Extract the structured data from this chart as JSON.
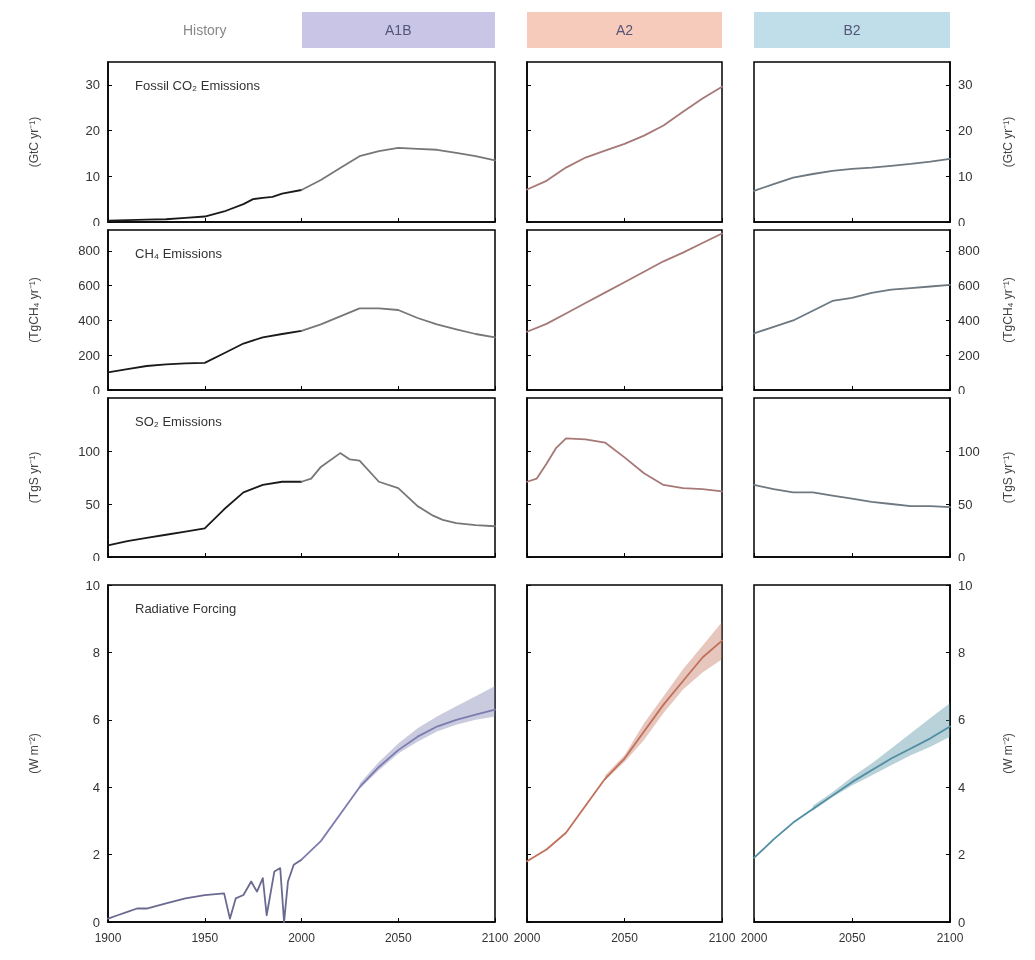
{
  "chart_data": [
    {
      "type": "line",
      "title": "Fossil CO₂ Emissions",
      "ylabel": "(GtC yr⁻¹)",
      "annotations": [
        "History",
        "A1B"
      ],
      "xlim": [
        1900,
        2100
      ],
      "xticks": [
        1900,
        1950,
        2000,
        2050,
        2100
      ],
      "ylim": [
        0,
        35
      ],
      "yticks": [
        0,
        10,
        20,
        30
      ],
      "tick_labels": "y",
      "series": [
        {
          "color": "#1a1a1a",
          "x": [
            1900,
            1910,
            1920,
            1930,
            1940,
            1950,
            1960,
            1970,
            1975,
            1980,
            1985,
            1990,
            2000
          ],
          "values": [
            0.3,
            0.4,
            0.5,
            0.6,
            0.9,
            1.2,
            2.3,
            3.9,
            5.0,
            5.3,
            5.5,
            6.2,
            7.0
          ]
        },
        {
          "color": "#777777",
          "x": [
            2000,
            2010,
            2020,
            2030,
            2040,
            2050,
            2060,
            2070,
            2080,
            2090,
            2100
          ],
          "values": [
            7.0,
            9.2,
            11.8,
            14.4,
            15.5,
            16.2,
            16.0,
            15.8,
            15.1,
            14.4,
            13.5
          ]
        }
      ]
    },
    {
      "type": "line",
      "annotations": [
        "A2"
      ],
      "xlim": [
        2000,
        2100
      ],
      "xticks": [
        2000,
        2050,
        2100
      ],
      "ylim": [
        0,
        35
      ],
      "yticks": [
        0,
        10,
        20,
        30
      ],
      "tick_labels": false,
      "series": [
        {
          "color": "#a77878",
          "x": [
            2000,
            2010,
            2020,
            2030,
            2040,
            2050,
            2060,
            2070,
            2080,
            2090,
            2100
          ],
          "values": [
            7.1,
            9.0,
            11.9,
            14.1,
            15.6,
            17.1,
            18.9,
            21.1,
            24.1,
            27.0,
            29.6
          ]
        }
      ]
    },
    {
      "type": "line",
      "ylabel": "(GtC yr⁻¹)",
      "annotations": [
        "B2"
      ],
      "xlim": [
        2000,
        2100
      ],
      "xticks": [
        2000,
        2050,
        2100
      ],
      "ylim": [
        0,
        35
      ],
      "yticks": [
        0,
        10,
        20,
        30
      ],
      "tick_labels": "y",
      "series": [
        {
          "color": "#6d7880",
          "x": [
            2000,
            2010,
            2020,
            2030,
            2040,
            2050,
            2060,
            2070,
            2080,
            2090,
            2100
          ],
          "values": [
            6.8,
            8.3,
            9.7,
            10.5,
            11.2,
            11.6,
            11.9,
            12.3,
            12.7,
            13.2,
            13.8
          ]
        }
      ]
    },
    {
      "type": "line",
      "title": "CH₄ Emissions",
      "ylabel": "(TgCH₄ yr⁻¹)",
      "xlim": [
        1900,
        2100
      ],
      "xticks": [
        1900,
        1950,
        2000,
        2050,
        2100
      ],
      "ylim": [
        0,
        920
      ],
      "yticks": [
        0,
        200,
        400,
        600,
        800
      ],
      "tick_labels": "y",
      "series": [
        {
          "color": "#1a1a1a",
          "x": [
            1900,
            1910,
            1920,
            1930,
            1940,
            1950,
            1960,
            1970,
            1980,
            1990,
            2000
          ],
          "values": [
            101,
            120,
            138,
            147,
            153,
            156,
            211,
            267,
            303,
            322,
            340
          ]
        },
        {
          "color": "#777777",
          "x": [
            2000,
            2010,
            2020,
            2030,
            2040,
            2050,
            2060,
            2070,
            2080,
            2090,
            2100
          ],
          "values": [
            340,
            377,
            423,
            469,
            469,
            460,
            414,
            377,
            349,
            322,
            303
          ]
        }
      ]
    },
    {
      "type": "line",
      "xlim": [
        2000,
        2100
      ],
      "xticks": [
        2000,
        2050,
        2100
      ],
      "ylim": [
        0,
        920
      ],
      "yticks": [
        0,
        200,
        400,
        600,
        800
      ],
      "tick_labels": false,
      "series": [
        {
          "color": "#a77878",
          "x": [
            2000,
            2010,
            2020,
            2030,
            2040,
            2050,
            2060,
            2070,
            2080,
            2090,
            2100
          ],
          "values": [
            335,
            380,
            440,
            500,
            560,
            620,
            680,
            740,
            790,
            845,
            900
          ]
        }
      ]
    },
    {
      "type": "line",
      "ylabel": "(TgCH₄ yr⁻¹)",
      "xlim": [
        2000,
        2100
      ],
      "xticks": [
        2000,
        2050,
        2100
      ],
      "ylim": [
        0,
        920
      ],
      "yticks": [
        0,
        200,
        400,
        600,
        800
      ],
      "tick_labels": "y",
      "series": [
        {
          "color": "#6d7880",
          "x": [
            2000,
            2010,
            2020,
            2030,
            2040,
            2050,
            2060,
            2070,
            2080,
            2090,
            2100
          ],
          "values": [
            326,
            363,
            400,
            456,
            512,
            530,
            558,
            577,
            586,
            595,
            605
          ]
        }
      ]
    },
    {
      "type": "line",
      "title": "SO₂ Emissions",
      "ylabel": "(TgS yr⁻¹)",
      "xlim": [
        1900,
        2100
      ],
      "xticks": [
        1900,
        1950,
        2000,
        2050,
        2100
      ],
      "ylim": [
        0,
        150
      ],
      "yticks": [
        0,
        50,
        100
      ],
      "tick_labels": "y",
      "series": [
        {
          "color": "#1a1a1a",
          "x": [
            1900,
            1910,
            1920,
            1930,
            1940,
            1950,
            1960,
            1970,
            1980,
            1990,
            2000
          ],
          "values": [
            11,
            15,
            18,
            21,
            24,
            27,
            45,
            61,
            68,
            71,
            71
          ]
        },
        {
          "color": "#777777",
          "x": [
            2000,
            2005,
            2010,
            2020,
            2025,
            2030,
            2040,
            2050,
            2060,
            2068,
            2073,
            2080,
            2090,
            2100
          ],
          "values": [
            71,
            74,
            85,
            98,
            92,
            91,
            71,
            65,
            48,
            39,
            35,
            32,
            30,
            29
          ]
        }
      ]
    },
    {
      "type": "line",
      "xlim": [
        2000,
        2100
      ],
      "xticks": [
        2000,
        2050,
        2100
      ],
      "ylim": [
        0,
        150
      ],
      "yticks": [
        0,
        50,
        100
      ],
      "tick_labels": false,
      "series": [
        {
          "color": "#a77878",
          "x": [
            2000,
            2005,
            2010,
            2015,
            2020,
            2030,
            2040,
            2050,
            2060,
            2070,
            2080,
            2090,
            2100
          ],
          "values": [
            71,
            74,
            88,
            103,
            112,
            111,
            108,
            94,
            79,
            68,
            65,
            64,
            62
          ]
        }
      ]
    },
    {
      "type": "line",
      "ylabel": "(TgS yr⁻¹)",
      "xlim": [
        2000,
        2100
      ],
      "xticks": [
        2000,
        2050,
        2100
      ],
      "ylim": [
        0,
        150
      ],
      "yticks": [
        0,
        50,
        100
      ],
      "tick_labels": "y",
      "series": [
        {
          "color": "#6d7880",
          "x": [
            2000,
            2010,
            2020,
            2030,
            2040,
            2050,
            2060,
            2070,
            2080,
            2090,
            2100
          ],
          "values": [
            68,
            64,
            61,
            61,
            58,
            55,
            52,
            50,
            48,
            48,
            47
          ]
        }
      ]
    },
    {
      "type": "line",
      "title": "Radiative Forcing",
      "ylabel": "(W m⁻²)",
      "xlim": [
        1900,
        2100
      ],
      "xticks": [
        1900,
        1950,
        2000,
        2050,
        2100
      ],
      "ylim": [
        0,
        10
      ],
      "yticks": [
        0,
        2,
        4,
        6,
        8,
        10
      ],
      "series": [
        {
          "color": "#6a6a90",
          "x": [
            1900,
            1905,
            1910,
            1915,
            1920,
            1930,
            1940,
            1950,
            1960,
            1963,
            1966,
            1970,
            1974,
            1977,
            1980,
            1982,
            1986,
            1989,
            1991,
            1993,
            1996,
            2000
          ],
          "values": [
            0.1,
            0.2,
            0.3,
            0.4,
            0.4,
            0.55,
            0.7,
            0.8,
            0.85,
            0.1,
            0.7,
            0.8,
            1.2,
            0.9,
            1.3,
            0.2,
            1.5,
            1.6,
            0.0,
            1.2,
            1.7,
            1.85
          ]
        },
        {
          "color": "#7c7cb0",
          "x": [
            2000,
            2010,
            2020,
            2030,
            2040,
            2050,
            2060,
            2070,
            2080,
            2090,
            2100
          ],
          "values": [
            1.85,
            2.4,
            3.2,
            4.0,
            4.6,
            5.1,
            5.5,
            5.8,
            6.0,
            6.15,
            6.3
          ],
          "lower": [
            null,
            null,
            null,
            3.95,
            4.5,
            5.0,
            5.35,
            5.65,
            5.85,
            6.0,
            6.1
          ],
          "upper": [
            null,
            null,
            null,
            4.1,
            4.75,
            5.3,
            5.75,
            6.1,
            6.4,
            6.7,
            7.0
          ]
        }
      ]
    },
    {
      "type": "line",
      "xlim": [
        2000,
        2100
      ],
      "xticks": [
        2000,
        2050,
        2100
      ],
      "ylim": [
        0,
        10
      ],
      "yticks": [
        0,
        2,
        4,
        6,
        8,
        10
      ],
      "tick_labels": "x",
      "series": [
        {
          "color": "#c0705a",
          "x": [
            2000,
            2010,
            2020,
            2030,
            2040,
            2050,
            2060,
            2070,
            2080,
            2090,
            2100
          ],
          "values": [
            1.8,
            2.15,
            2.65,
            3.45,
            4.25,
            4.85,
            5.65,
            6.45,
            7.15,
            7.85,
            8.35
          ],
          "lower": [
            null,
            null,
            null,
            null,
            4.2,
            4.75,
            5.4,
            6.2,
            6.9,
            7.4,
            7.8
          ],
          "upper": [
            null,
            null,
            null,
            null,
            4.35,
            4.95,
            5.9,
            6.7,
            7.5,
            8.2,
            8.9
          ]
        }
      ]
    },
    {
      "type": "line",
      "ylabel": "(W m⁻²)",
      "xlim": [
        2000,
        2100
      ],
      "xticks": [
        2000,
        2050,
        2100
      ],
      "ylim": [
        0,
        10
      ],
      "yticks": [
        0,
        2,
        4,
        6,
        8,
        10
      ],
      "series": [
        {
          "color": "#4f8ea3",
          "x": [
            2000,
            2010,
            2020,
            2030,
            2040,
            2050,
            2060,
            2070,
            2080,
            2090,
            2100
          ],
          "values": [
            1.9,
            2.45,
            2.95,
            3.35,
            3.75,
            4.15,
            4.5,
            4.85,
            5.15,
            5.45,
            5.8
          ],
          "lower": [
            null,
            null,
            null,
            3.3,
            3.7,
            4.05,
            4.35,
            4.65,
            4.95,
            5.2,
            5.5
          ],
          "upper": [
            null,
            null,
            null,
            3.45,
            3.85,
            4.3,
            4.7,
            5.15,
            5.6,
            6.05,
            6.5
          ]
        }
      ]
    }
  ]
}
